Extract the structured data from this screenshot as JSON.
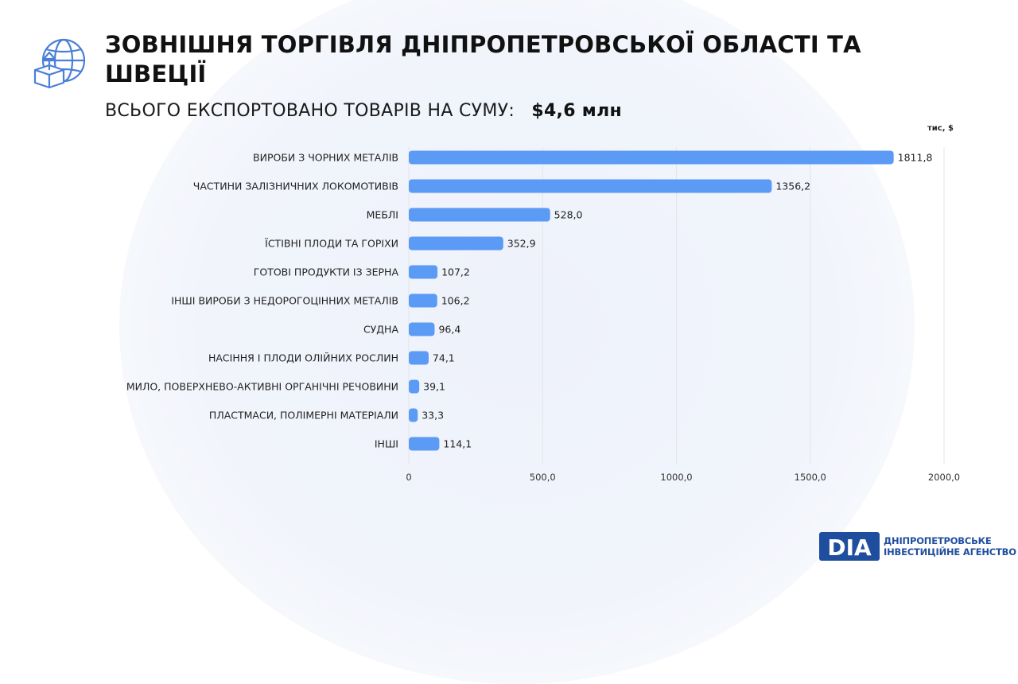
{
  "header": {
    "title": "ЗОВНІШНЯ ТОРГІВЛЯ ДНІПРОПЕТРОВСЬКОЇ ОБЛАСТІ ТА ШВЕЦІЇ",
    "subtitle_label": "ВСЬОГО ЕКСПОРТОВАНО ТОВАРІВ НА СУМУ:",
    "subtitle_amount": "$4,6 млн",
    "icon": "globe-box-upload-icon"
  },
  "chart_data": {
    "type": "bar",
    "orientation": "horizontal",
    "unit_label": "тис, $",
    "categories": [
      "ВИРОБИ З ЧОРНИХ МЕТАЛІВ",
      "ЧАСТИНИ ЗАЛІЗНИЧНИХ ЛОКОМОТИВІВ",
      "МЕБЛІ",
      "ЇСТІВНІ ПЛОДИ ТА ГОРІХИ",
      "ГОТОВІ ПРОДУКТИ ІЗ ЗЕРНА",
      "ІНШІ ВИРОБИ З НЕДОРОГОЦІННИХ МЕТАЛІВ",
      "СУДНА",
      "НАСІННЯ І ПЛОДИ ОЛІЙНИХ РОСЛИН",
      "МИЛО, ПОВЕРХНЕВО-АКТИВНІ ОРГАНІЧНІ РЕЧОВИНИ",
      "ПЛАСТМАСИ, ПОЛІМЕРНІ МАТЕРІАЛИ",
      "ІНШІ"
    ],
    "values": [
      1811.8,
      1356.2,
      528.0,
      352.9,
      107.2,
      106.2,
      96.4,
      74.1,
      39.1,
      33.3,
      114.1
    ],
    "value_labels": [
      "1811,8",
      "1356,2",
      "528,0",
      "352,9",
      "107,2",
      "106,2",
      "96,4",
      "74,1",
      "39,1",
      "33,3",
      "114,1"
    ],
    "xlim": [
      0,
      2000
    ],
    "x_ticks": [
      0,
      500,
      1000,
      1500,
      2000
    ],
    "x_tick_labels": [
      "0",
      "500,0",
      "1000,0",
      "1500,0",
      "2000,0"
    ],
    "grid": true,
    "bar_color": "#5b9af5",
    "grid_color": "#e2e4ea"
  },
  "footer": {
    "logo_mark": "DIA",
    "logo_line1": "ДНІПРОПЕТРОВСЬКЕ",
    "logo_line2": "ІНВЕСТИЦІЙНЕ АГЕНСТВО",
    "logo_color": "#1f4e9e"
  }
}
